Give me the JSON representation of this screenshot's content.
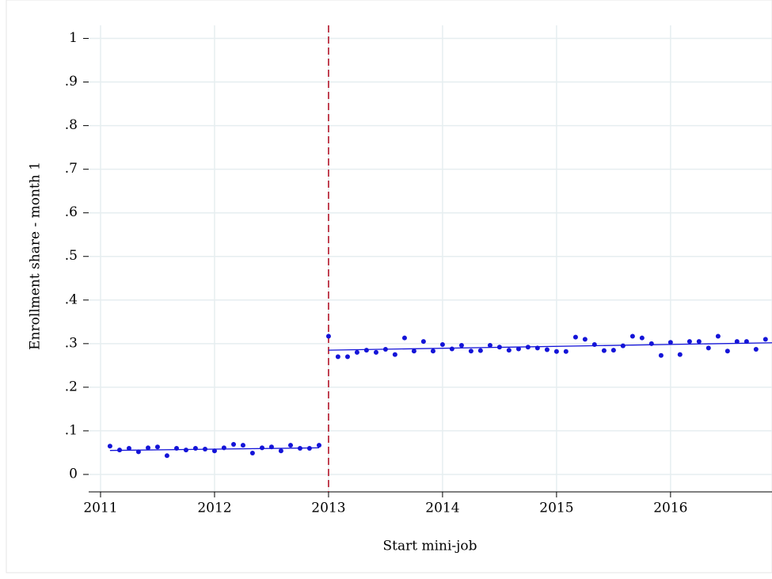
{
  "chart_data": {
    "type": "scatter",
    "x_label": "Start mini-job",
    "y_label": "Enrollment share - month 1",
    "xlim": [
      2010.896,
      2016.89
    ],
    "ylim": [
      -0.04,
      1.03
    ],
    "xticks": [
      2011,
      2012,
      2013,
      2014,
      2015,
      2016
    ],
    "yticks": [
      0,
      {
        "value": 0.1,
        "label": ".1"
      },
      {
        "value": 0.2,
        "label": ".2"
      },
      {
        "value": 0.3,
        "label": ".3"
      },
      {
        "value": 0.4,
        "label": ".4"
      },
      {
        "value": 0.5,
        "label": ".5"
      },
      {
        "value": 0.6,
        "label": ".6"
      },
      {
        "value": 0.7,
        "label": ".7"
      },
      {
        "value": 0.8,
        "label": ".8"
      },
      {
        "value": 0.9,
        "label": ".9"
      },
      1
    ],
    "grid": true,
    "vlines": [
      {
        "x": 2013,
        "color": "#b5172a"
      }
    ],
    "series": [
      {
        "mode": "markers",
        "color": "#1414d8",
        "x": [
          2011.083,
          2011.167,
          2011.25,
          2011.333,
          2011.417,
          2011.5,
          2011.583,
          2011.667,
          2011.75,
          2011.833,
          2011.917,
          2012,
          2012.083,
          2012.167,
          2012.25,
          2012.333,
          2012.417,
          2012.5,
          2012.583,
          2012.667,
          2012.75,
          2012.833,
          2012.917
        ],
        "values": [
          0.065,
          0.056,
          0.06,
          0.052,
          0.061,
          0.063,
          0.043,
          0.06,
          0.056,
          0.06,
          0.058,
          0.054,
          0.061,
          0.069,
          0.067,
          0.049,
          0.061,
          0.063,
          0.054,
          0.067,
          0.06,
          0.06,
          0.067
        ]
      },
      {
        "mode": "markers",
        "color": "#1414d8",
        "x": [
          2013,
          2013.083,
          2013.167,
          2013.25,
          2013.333,
          2013.417,
          2013.5,
          2013.583,
          2013.667,
          2013.75,
          2013.833,
          2013.917,
          2014,
          2014.083,
          2014.167,
          2014.25,
          2014.333,
          2014.417,
          2014.5,
          2014.583,
          2014.667,
          2014.75,
          2014.833,
          2014.917,
          2015,
          2015.083,
          2015.167,
          2015.25,
          2015.333,
          2015.417,
          2015.5,
          2015.583,
          2015.667,
          2015.75,
          2015.833,
          2015.917,
          2016,
          2016.083,
          2016.167,
          2016.25,
          2016.333,
          2016.417,
          2016.5,
          2016.583,
          2016.667,
          2016.75,
          2016.833
        ],
        "values": [
          0.317,
          0.27,
          0.27,
          0.28,
          0.285,
          0.28,
          0.287,
          0.275,
          0.313,
          0.283,
          0.305,
          0.283,
          0.298,
          0.288,
          0.296,
          0.283,
          0.284,
          0.296,
          0.292,
          0.285,
          0.288,
          0.292,
          0.29,
          0.286,
          0.282,
          0.282,
          0.315,
          0.31,
          0.298,
          0.284,
          0.285,
          0.295,
          0.317,
          0.313,
          0.3,
          0.273,
          0.303,
          0.275,
          0.305,
          0.305,
          0.29,
          0.317,
          0.283,
          0.305,
          0.305,
          0.287,
          0.31
        ]
      },
      {
        "mode": "line",
        "color": "#1414d8",
        "x": [
          2011.083,
          2012.917
        ],
        "values": [
          0.055,
          0.061
        ]
      },
      {
        "mode": "line",
        "color": "#1414d8",
        "x": [
          2013,
          2016.89
        ],
        "values": [
          0.285,
          0.302
        ]
      }
    ]
  }
}
